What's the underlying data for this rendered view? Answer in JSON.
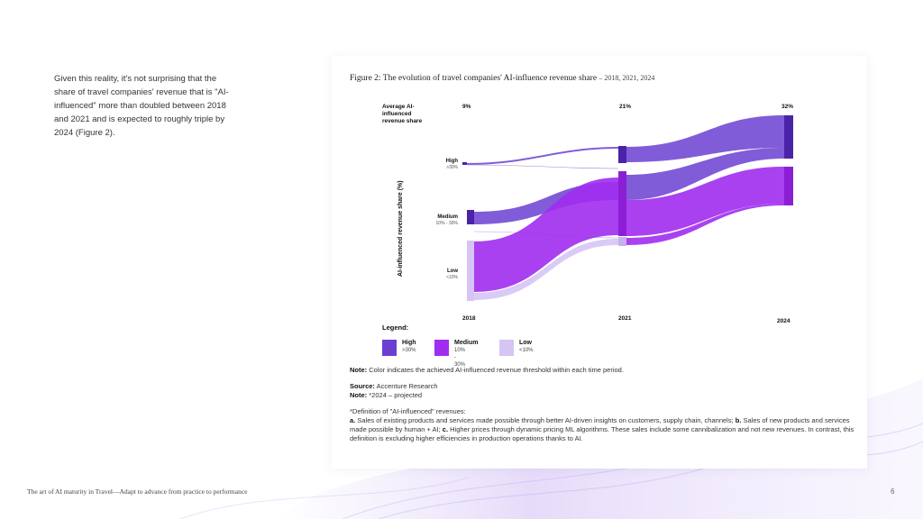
{
  "intro": {
    "text": "Given this reality, it's not surprising that the share of travel companies' revenue that is \"AI-influenced\" more than doubled between 2018 and 2021 and is expected to roughly triple by 2024 (Figure 2)."
  },
  "figure": {
    "title": "Figure 2: The evolution of travel companies' AI-influence revenue share",
    "title_years": "– 2018, 2021, 2024",
    "top_label_line1": "Average AI-",
    "top_label_line2": "influenced",
    "top_label_line3": "revenue share",
    "y_axis_label": "AI-influenced revenue share (%)",
    "pct_2018": "9%",
    "pct_2021": "21%",
    "pct_2024": "32%",
    "year_2018": "2018",
    "year_2021": "2021",
    "year_2024": "2024",
    "cat_high": "High",
    "cat_high_range": ">30%",
    "cat_medium": "Medium",
    "cat_medium_range": "10% - 30%",
    "cat_low": "Low",
    "cat_low_range": "<10%",
    "colors": {
      "high": "#6b3fd1",
      "medium": "#a02cf0",
      "low": "#d6c4f5",
      "dark": "#4a23a8"
    }
  },
  "legend": {
    "title": "Legend:",
    "high_label": "High",
    "high_range": ">30%",
    "medium_label": "Medium",
    "medium_range": "10% - 30%",
    "low_label": "Low",
    "low_range": "<10%"
  },
  "notes": {
    "note1_label": "Note:",
    "note1_text": " Color indicates the achieved AI-influenced revenue threshold within each time period.",
    "source_label": "Source:",
    "source_text": " Accenture Research",
    "note2_label": "Note:",
    "note2_text": " *2024 – projected",
    "definition_heading": "*Definition of \"AI-influenced\" revenues:",
    "def_a_label": "a.",
    "def_a_text": " Sales of existing products and services made possible through better AI-driven insights on customers, supply chain, channels; ",
    "def_b_label": "b.",
    "def_b_text": " Sales of new products and services made possible by human + AI; ",
    "def_c_label": "c.",
    "def_c_text": " Higher prices through dynamic pricing ML algorithms. These sales include some cannibalization and not new revenues. In contrast, this definition is excluding higher efficiencies in production operations thanks to AI."
  },
  "footer": {
    "text": "The art of AI maturity in Travel—Adapt to advance from practice to performance",
    "page": "6"
  }
}
